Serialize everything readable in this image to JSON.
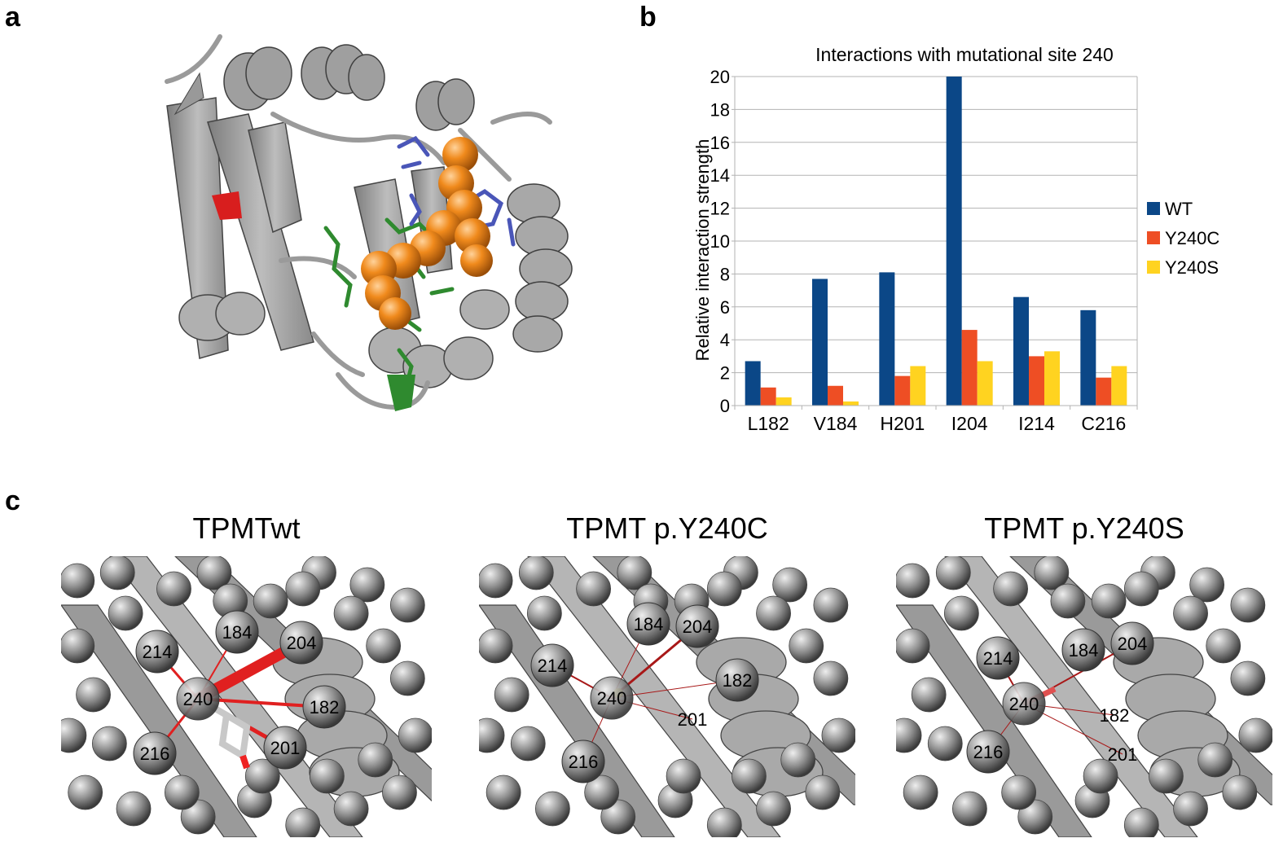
{
  "panels": {
    "a": "a",
    "b": "b",
    "c": "c"
  },
  "chart_data": {
    "type": "bar",
    "title": "Interactions with mutational site 240",
    "xlabel": "",
    "ylabel": "Relative interaction strength",
    "categories": [
      "L182",
      "V184",
      "H201",
      "I204",
      "I214",
      "C216"
    ],
    "ylim": [
      0,
      20
    ],
    "yticks": [
      0,
      2,
      4,
      6,
      8,
      10,
      12,
      14,
      16,
      18,
      20
    ],
    "grid": true,
    "legend_position": "right",
    "series": [
      {
        "name": "WT",
        "color": "#0b4787",
        "values": [
          2.7,
          7.7,
          8.1,
          20.0,
          6.6,
          5.8
        ]
      },
      {
        "name": "Y240C",
        "color": "#ee4e24",
        "values": [
          1.1,
          1.2,
          1.8,
          4.6,
          3.0,
          1.7
        ]
      },
      {
        "name": "Y240S",
        "color": "#ffd320",
        "values": [
          0.5,
          0.25,
          2.4,
          2.7,
          3.3,
          2.4
        ]
      }
    ]
  },
  "structures": [
    {
      "title": "TPMTwt",
      "center_label": "240",
      "nodes": [
        "184",
        "204",
        "214",
        "182",
        "216",
        "201"
      ]
    },
    {
      "title": "TPMT p.Y240C",
      "center_label": "240",
      "nodes": [
        "184",
        "204",
        "214",
        "182",
        "216",
        "201"
      ]
    },
    {
      "title": "TPMT p.Y240S",
      "center_label": "240",
      "nodes": [
        "184",
        "204",
        "214",
        "182",
        "216",
        "201"
      ]
    }
  ],
  "colors": {
    "ribbon": "#9a9a9a",
    "helix_dark": "#7a7a7a",
    "ligand_orange": "#f08a1c",
    "green_sticks": "#2f8a2f",
    "blue_sticks": "#4a56b8",
    "red_patch": "#d81e1e",
    "interaction_red": "#cc2020"
  }
}
